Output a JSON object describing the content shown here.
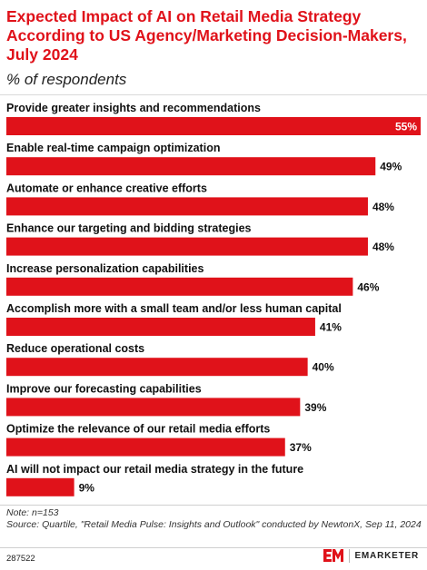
{
  "header": {
    "title": "Expected Impact of AI on Retail Media Strategy According to US Agency/Marketing Decision-Makers, July 2024",
    "subtitle": "% of respondents"
  },
  "chart_data": {
    "type": "bar",
    "orientation": "horizontal",
    "value_suffix": "%",
    "bar_color": "#e0121a",
    "categories": [
      "Provide greater insights and recommendations",
      "Enable real-time campaign optimization",
      "Automate or enhance creative efforts",
      "Enhance our targeting and bidding strategies",
      "Increase personalization capabilities",
      "Accomplish more with a small team and/or less human capital",
      "Reduce operational costs",
      "Improve our forecasting capabilities",
      "Optimize the relevance of our retail media efforts",
      "AI will not impact our retail media strategy in the future"
    ],
    "values": [
      55,
      49,
      48,
      48,
      46,
      41,
      40,
      39,
      37,
      9
    ],
    "max": 55
  },
  "footer": {
    "note": "Note: n=153",
    "source": "Source: Quartile, \"Retail Media Pulse: Insights and Outlook\" conducted by NewtonX, Sep 11, 2024",
    "chart_id": "287522",
    "logo_text": "EMARKETER"
  }
}
